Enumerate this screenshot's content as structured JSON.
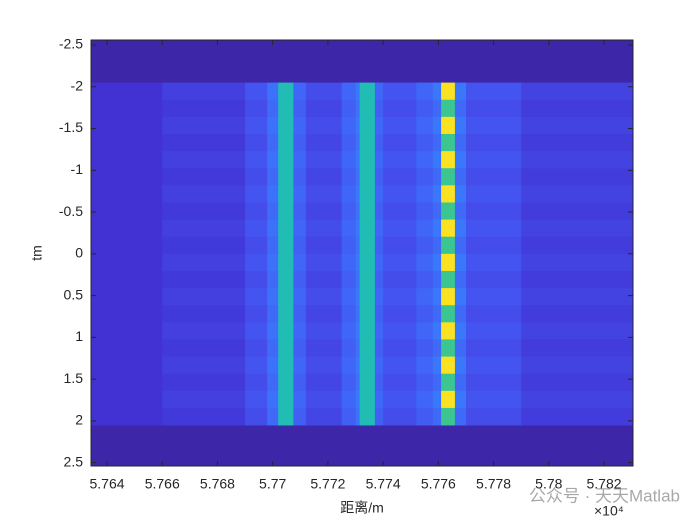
{
  "chart_data": {
    "type": "heatmap",
    "xlabel": "距离/m",
    "ylabel": "tm",
    "x_exponent_label": "×10⁴",
    "watermark": "公众号 · 天天Matlab",
    "xlim": [
      57634.2,
      57830.5
    ],
    "ylim": [
      -2.56,
      2.54
    ],
    "y_reversed": true,
    "xticks": [
      {
        "value": 57640,
        "label": "5.764"
      },
      {
        "value": 57660,
        "label": "5.766"
      },
      {
        "value": 57680,
        "label": "5.768"
      },
      {
        "value": 57700,
        "label": "5.77"
      },
      {
        "value": 57720,
        "label": "5.772"
      },
      {
        "value": 57740,
        "label": "5.774"
      },
      {
        "value": 57760,
        "label": "5.776"
      },
      {
        "value": 57780,
        "label": "5.778"
      },
      {
        "value": 57800,
        "label": "5.78"
      },
      {
        "value": 57820,
        "label": "5.782"
      }
    ],
    "yticks": [
      -2.5,
      -2,
      -1.5,
      -1,
      -0.5,
      0,
      0.5,
      1,
      1.5,
      2,
      2.5
    ],
    "clim": [
      0,
      1
    ],
    "colormap": [
      "#3e26a8",
      "#4232d4",
      "#4454f0",
      "#3a78fb",
      "#2a9ae8",
      "#17b5cb",
      "#2bc49d",
      "#7bc95b",
      "#c9bf3a",
      "#fbc733",
      "#f9fb0e"
    ],
    "x_edges": [
      57634.2,
      57660,
      57690,
      57698,
      57702,
      57707.5,
      57712,
      57725,
      57730,
      57731.5,
      57737,
      57740,
      57752,
      57758,
      57761,
      57766,
      57770,
      57790,
      57830.5
    ],
    "y_edges": [
      -2.05,
      -1.845,
      -1.64,
      -1.435,
      -1.23,
      -1.025,
      -0.82,
      -0.615,
      -0.41,
      -0.205,
      0,
      0.205,
      0.41,
      0.615,
      0.82,
      1.025,
      1.23,
      1.435,
      1.64,
      1.845,
      2.05
    ],
    "z": [
      [
        0.1,
        0.14,
        0.2,
        0.28,
        0.55,
        0.25,
        0.18,
        0.25,
        0.3,
        0.55,
        0.25,
        0.2,
        0.25,
        0.3,
        0.95,
        0.3,
        0.2,
        0.15
      ],
      [
        0.1,
        0.12,
        0.18,
        0.26,
        0.55,
        0.23,
        0.16,
        0.23,
        0.28,
        0.55,
        0.23,
        0.18,
        0.22,
        0.26,
        0.62,
        0.26,
        0.18,
        0.13
      ],
      [
        0.1,
        0.14,
        0.2,
        0.28,
        0.55,
        0.25,
        0.18,
        0.25,
        0.3,
        0.55,
        0.25,
        0.2,
        0.25,
        0.3,
        0.95,
        0.3,
        0.2,
        0.15
      ],
      [
        0.1,
        0.12,
        0.18,
        0.26,
        0.55,
        0.23,
        0.16,
        0.23,
        0.28,
        0.55,
        0.23,
        0.18,
        0.22,
        0.26,
        0.62,
        0.26,
        0.18,
        0.13
      ],
      [
        0.1,
        0.14,
        0.2,
        0.28,
        0.55,
        0.25,
        0.18,
        0.25,
        0.3,
        0.55,
        0.25,
        0.2,
        0.25,
        0.3,
        0.95,
        0.3,
        0.2,
        0.15
      ],
      [
        0.1,
        0.12,
        0.18,
        0.26,
        0.55,
        0.23,
        0.16,
        0.23,
        0.28,
        0.55,
        0.23,
        0.18,
        0.22,
        0.26,
        0.62,
        0.26,
        0.18,
        0.13
      ],
      [
        0.1,
        0.14,
        0.2,
        0.28,
        0.55,
        0.25,
        0.18,
        0.25,
        0.3,
        0.55,
        0.25,
        0.2,
        0.25,
        0.3,
        0.95,
        0.3,
        0.2,
        0.15
      ],
      [
        0.1,
        0.12,
        0.18,
        0.26,
        0.55,
        0.23,
        0.16,
        0.23,
        0.28,
        0.55,
        0.23,
        0.18,
        0.22,
        0.26,
        0.62,
        0.26,
        0.18,
        0.13
      ],
      [
        0.1,
        0.14,
        0.2,
        0.28,
        0.55,
        0.25,
        0.18,
        0.25,
        0.3,
        0.55,
        0.25,
        0.2,
        0.25,
        0.3,
        0.95,
        0.3,
        0.2,
        0.15
      ],
      [
        0.1,
        0.12,
        0.18,
        0.26,
        0.55,
        0.23,
        0.16,
        0.23,
        0.28,
        0.55,
        0.23,
        0.18,
        0.22,
        0.26,
        0.62,
        0.26,
        0.18,
        0.13
      ],
      [
        0.1,
        0.14,
        0.2,
        0.28,
        0.55,
        0.25,
        0.18,
        0.25,
        0.3,
        0.55,
        0.25,
        0.2,
        0.25,
        0.3,
        0.95,
        0.3,
        0.2,
        0.15
      ],
      [
        0.1,
        0.12,
        0.18,
        0.26,
        0.55,
        0.23,
        0.16,
        0.23,
        0.28,
        0.55,
        0.23,
        0.18,
        0.22,
        0.26,
        0.62,
        0.26,
        0.18,
        0.13
      ],
      [
        0.1,
        0.14,
        0.2,
        0.28,
        0.55,
        0.25,
        0.18,
        0.25,
        0.3,
        0.55,
        0.25,
        0.2,
        0.25,
        0.3,
        0.95,
        0.3,
        0.2,
        0.15
      ],
      [
        0.1,
        0.12,
        0.18,
        0.26,
        0.55,
        0.23,
        0.16,
        0.23,
        0.28,
        0.55,
        0.23,
        0.18,
        0.22,
        0.26,
        0.62,
        0.26,
        0.18,
        0.13
      ],
      [
        0.1,
        0.14,
        0.2,
        0.28,
        0.55,
        0.25,
        0.18,
        0.25,
        0.3,
        0.55,
        0.25,
        0.2,
        0.25,
        0.3,
        0.95,
        0.3,
        0.2,
        0.15
      ],
      [
        0.1,
        0.12,
        0.18,
        0.26,
        0.55,
        0.23,
        0.16,
        0.23,
        0.28,
        0.55,
        0.23,
        0.18,
        0.22,
        0.26,
        0.62,
        0.26,
        0.18,
        0.13
      ],
      [
        0.1,
        0.14,
        0.2,
        0.28,
        0.55,
        0.25,
        0.18,
        0.25,
        0.3,
        0.55,
        0.25,
        0.2,
        0.25,
        0.3,
        0.95,
        0.3,
        0.2,
        0.15
      ],
      [
        0.1,
        0.12,
        0.18,
        0.26,
        0.55,
        0.23,
        0.16,
        0.23,
        0.28,
        0.55,
        0.23,
        0.18,
        0.22,
        0.26,
        0.62,
        0.26,
        0.18,
        0.13
      ],
      [
        0.1,
        0.14,
        0.2,
        0.28,
        0.55,
        0.25,
        0.18,
        0.25,
        0.3,
        0.55,
        0.25,
        0.2,
        0.25,
        0.3,
        0.95,
        0.3,
        0.2,
        0.15
      ],
      [
        0.1,
        0.12,
        0.18,
        0.26,
        0.55,
        0.23,
        0.16,
        0.23,
        0.28,
        0.55,
        0.23,
        0.18,
        0.22,
        0.26,
        0.62,
        0.26,
        0.18,
        0.13
      ]
    ]
  }
}
